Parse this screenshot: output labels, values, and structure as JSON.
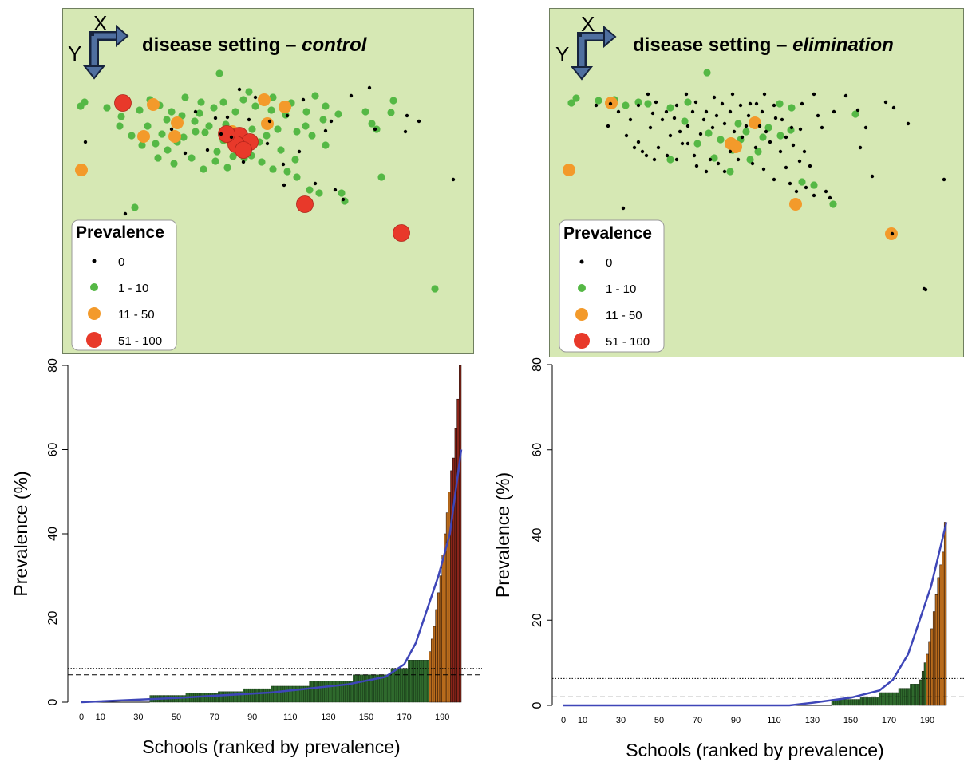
{
  "colors": {
    "map_bg": "#d6e8b4",
    "zero": "#000000",
    "low": "#55b845",
    "mid": "#f39a2b",
    "high": "#e8392a",
    "bar_low": "#2f6a2d",
    "bar_mid": "#b86b1c",
    "bar_high": "#8a241a",
    "curve": "#3e46b8",
    "arrow": "#4f6f9f"
  },
  "legend": {
    "title": "Prevalence",
    "entries": [
      {
        "label": "0",
        "category": "zero"
      },
      {
        "label": "1 - 10",
        "category": "low"
      },
      {
        "label": "11 - 50",
        "category": "mid"
      },
      {
        "label": "51 - 100",
        "category": "high"
      }
    ]
  },
  "compass": {
    "x": "X",
    "y": "Y"
  },
  "maps": [
    {
      "title_prefix": "disease setting – ",
      "title_em": "control"
    },
    {
      "title_prefix": "disease setting – ",
      "title_em": "elimination"
    }
  ],
  "chart_data": [
    {
      "type": "bar",
      "title": "",
      "xlabel": "Schools (ranked by prevalence)",
      "ylabel": "Prevalence (%)",
      "ylim": [
        0,
        80
      ],
      "xlim": [
        0,
        200
      ],
      "yticks": [
        0,
        20,
        40,
        60,
        80
      ],
      "xticks": [
        0,
        10,
        30,
        50,
        70,
        90,
        110,
        130,
        150,
        170,
        190
      ],
      "reference_lines": [
        {
          "style": "dotted",
          "y": 8
        },
        {
          "style": "dashed",
          "y": 6.5
        }
      ],
      "bands": [
        {
          "start": 0,
          "end": 36,
          "value": 0
        },
        {
          "start": 36,
          "end": 55,
          "value": 1.6
        },
        {
          "start": 55,
          "end": 72,
          "value": 2.2
        },
        {
          "start": 72,
          "end": 85,
          "value": 2.5
        },
        {
          "start": 85,
          "end": 100,
          "value": 3.2
        },
        {
          "start": 100,
          "end": 120,
          "value": 3.8
        },
        {
          "start": 120,
          "end": 143,
          "value": 5
        },
        {
          "start": 143,
          "end": 163,
          "value": 6.5
        },
        {
          "start": 163,
          "end": 172,
          "value": 8
        },
        {
          "start": 172,
          "end": 183,
          "value": 10
        }
      ],
      "top_bars": [
        12,
        15,
        18,
        22,
        26,
        30,
        35,
        40,
        45,
        50,
        55,
        58,
        65,
        72,
        80
      ],
      "category_cutoffs": {
        "mid_min": 11,
        "high_min": 51
      },
      "curve": [
        [
          0,
          0
        ],
        [
          50,
          1
        ],
        [
          100,
          2.3
        ],
        [
          140,
          4.2
        ],
        [
          160,
          6
        ],
        [
          170,
          9
        ],
        [
          176,
          14
        ],
        [
          182,
          22
        ],
        [
          188,
          30
        ],
        [
          194,
          40
        ],
        [
          200,
          60
        ]
      ]
    },
    {
      "type": "bar",
      "title": "",
      "xlabel": "Schools (ranked by prevalence)",
      "ylabel": "Prevalence (%)",
      "ylim": [
        0,
        80
      ],
      "xlim": [
        0,
        200
      ],
      "yticks": [
        0,
        20,
        40,
        60,
        80
      ],
      "xticks": [
        0,
        10,
        30,
        50,
        70,
        90,
        110,
        130,
        150,
        170,
        190
      ],
      "reference_lines": [
        {
          "style": "dotted",
          "y": 6.3
        },
        {
          "style": "dashed",
          "y": 2
        }
      ],
      "bands": [
        {
          "start": 0,
          "end": 140,
          "value": 0
        },
        {
          "start": 140,
          "end": 155,
          "value": 1.4
        },
        {
          "start": 155,
          "end": 165,
          "value": 1.8
        },
        {
          "start": 165,
          "end": 175,
          "value": 3
        },
        {
          "start": 175,
          "end": 181,
          "value": 4
        },
        {
          "start": 181,
          "end": 186,
          "value": 5
        }
      ],
      "top_bars": [
        6,
        8,
        10,
        12,
        15,
        18,
        22,
        26,
        30,
        33,
        36,
        43
      ],
      "category_cutoffs": {
        "mid_min": 11,
        "high_min": 51
      },
      "curve": [
        [
          0,
          0
        ],
        [
          118,
          0
        ],
        [
          130,
          0.6
        ],
        [
          150,
          1.8
        ],
        [
          165,
          3.5
        ],
        [
          172,
          6
        ],
        [
          180,
          12
        ],
        [
          186,
          20
        ],
        [
          192,
          28
        ],
        [
          200,
          43
        ]
      ]
    }
  ],
  "map_points": [
    {
      "zero": [
        [
          157,
          268
        ],
        [
          107,
          178
        ],
        [
          270,
          148
        ],
        [
          320,
          122
        ],
        [
          360,
          145
        ],
        [
          290,
          172
        ],
        [
          335,
          180
        ],
        [
          375,
          190
        ],
        [
          395,
          230
        ],
        [
          415,
          152
        ],
        [
          420,
          238
        ],
        [
          430,
          250
        ],
        [
          355,
          206
        ],
        [
          305,
          203
        ],
        [
          260,
          188
        ],
        [
          215,
          162
        ],
        [
          245,
          140
        ],
        [
          300,
          112
        ],
        [
          380,
          125
        ],
        [
          470,
          162
        ],
        [
          510,
          145
        ],
        [
          525,
          152
        ],
        [
          568,
          225
        ],
        [
          508,
          165
        ],
        [
          463,
          110
        ],
        [
          440,
          120
        ],
        [
          338,
          152
        ],
        [
          312,
          150
        ],
        [
          285,
          147
        ],
        [
          277,
          168
        ],
        [
          232,
          192
        ],
        [
          408,
          164
        ],
        [
          356,
          232
        ]
      ],
      "low": [
        [
          106,
          128
        ],
        [
          101,
          133
        ],
        [
          134,
          135
        ],
        [
          160,
          128
        ],
        [
          175,
          138
        ],
        [
          188,
          125
        ],
        [
          200,
          132
        ],
        [
          215,
          140
        ],
        [
          232,
          122
        ],
        [
          250,
          142
        ],
        [
          275,
          92
        ],
        [
          280,
          128
        ],
        [
          295,
          140
        ],
        [
          305,
          125
        ],
        [
          320,
          133
        ],
        [
          340,
          138
        ],
        [
          358,
          144
        ],
        [
          372,
          165
        ],
        [
          383,
          158
        ],
        [
          395,
          120
        ],
        [
          408,
          133
        ],
        [
          424,
          143
        ],
        [
          458,
          140
        ],
        [
          466,
          155
        ],
        [
          472,
          162
        ],
        [
          490,
          141
        ],
        [
          493,
          126
        ],
        [
          478,
          222
        ],
        [
          169,
          260
        ],
        [
          195,
          180
        ],
        [
          210,
          188
        ],
        [
          230,
          172
        ],
        [
          245,
          165
        ],
        [
          262,
          158
        ],
        [
          280,
          176
        ],
        [
          298,
          188
        ],
        [
          315,
          195
        ],
        [
          328,
          203
        ],
        [
          342,
          212
        ],
        [
          360,
          215
        ],
        [
          372,
          222
        ],
        [
          388,
          238
        ],
        [
          400,
          242
        ],
        [
          428,
          242
        ],
        [
          432,
          252
        ],
        [
          150,
          158
        ],
        [
          165,
          170
        ],
        [
          178,
          182
        ],
        [
          198,
          198
        ],
        [
          218,
          205
        ],
        [
          240,
          198
        ],
        [
          255,
          212
        ],
        [
          270,
          202
        ],
        [
          285,
          210
        ],
        [
          306,
          198
        ],
        [
          325,
          178
        ],
        [
          348,
          162
        ],
        [
          352,
          188
        ],
        [
          370,
          200
        ],
        [
          391,
          170
        ],
        [
          408,
          182
        ],
        [
          228,
          145
        ],
        [
          252,
          128
        ],
        [
          268,
          135
        ],
        [
          312,
          115
        ],
        [
          342,
          122
        ],
        [
          365,
          129
        ],
        [
          152,
          146
        ],
        [
          185,
          158
        ],
        [
          203,
          168
        ],
        [
          222,
          178
        ],
        [
          244,
          152
        ],
        [
          300,
          165
        ],
        [
          316,
          162
        ],
        [
          283,
          156
        ],
        [
          272,
          190
        ],
        [
          257,
          166
        ],
        [
          209,
          150
        ],
        [
          292,
          196
        ],
        [
          334,
          170
        ],
        [
          384,
          140
        ],
        [
          405,
          150
        ],
        [
          545,
          362
        ]
      ],
      "mid": [
        [
          102,
          213
        ],
        [
          192,
          131
        ],
        [
          180,
          171
        ],
        [
          219,
          171
        ],
        [
          222,
          154
        ],
        [
          331,
          125
        ],
        [
          357,
          134
        ],
        [
          335,
          155
        ],
        [
          308,
          182
        ],
        [
          316,
          177
        ],
        [
          291,
          165
        ],
        [
          286,
          172
        ]
      ],
      "high": [
        [
          154,
          129
        ],
        [
          382,
          256
        ],
        [
          503,
          292
        ],
        [
          300,
          170
        ],
        [
          313,
          178
        ],
        [
          296,
          181
        ],
        [
          284,
          168
        ],
        [
          305,
          188
        ]
      ]
    },
    {
      "zero": [
        [
          781,
          261
        ],
        [
          747,
          132
        ],
        [
          762,
          158
        ],
        [
          775,
          140
        ],
        [
          790,
          150
        ],
        [
          800,
          132
        ],
        [
          812,
          118
        ],
        [
          822,
          128
        ],
        [
          835,
          140
        ],
        [
          848,
          132
        ],
        [
          860,
          118
        ],
        [
          872,
          128
        ],
        [
          885,
          140
        ],
        [
          895,
          122
        ],
        [
          905,
          130
        ],
        [
          918,
          118
        ],
        [
          928,
          132
        ],
        [
          938,
          145
        ],
        [
          948,
          130
        ],
        [
          958,
          118
        ],
        [
          970,
          132
        ],
        [
          980,
          150
        ],
        [
          992,
          160
        ],
        [
          1005,
          130
        ],
        [
          1020,
          118
        ],
        [
          1030,
          160
        ],
        [
          1045,
          140
        ],
        [
          1060,
          120
        ],
        [
          1075,
          138
        ],
        [
          1085,
          160
        ],
        [
          1110,
          128
        ],
        [
          1138,
          155
        ],
        [
          1093,
          221
        ],
        [
          1183,
          225
        ],
        [
          1120,
          135
        ],
        [
          1078,
          185
        ],
        [
          960,
          165
        ],
        [
          947,
          185
        ],
        [
          930,
          172
        ],
        [
          915,
          190
        ],
        [
          900,
          205
        ],
        [
          885,
          215
        ],
        [
          870,
          195
        ],
        [
          855,
          180
        ],
        [
          840,
          170
        ],
        [
          825,
          185
        ],
        [
          810,
          195
        ],
        [
          800,
          178
        ],
        [
          815,
          160
        ],
        [
          830,
          150
        ],
        [
          845,
          148
        ],
        [
          862,
          158
        ],
        [
          878,
          168
        ],
        [
          893,
          160
        ],
        [
          908,
          155
        ],
        [
          920,
          165
        ],
        [
          935,
          158
        ],
        [
          952,
          158
        ],
        [
          965,
          178
        ],
        [
          978,
          190
        ],
        [
          985,
          210
        ],
        [
          990,
          230
        ],
        [
          998,
          240
        ],
        [
          1010,
          235
        ],
        [
          1020,
          245
        ],
        [
          1035,
          240
        ],
        [
          1040,
          248
        ],
        [
          1002,
          202
        ],
        [
          970,
          225
        ],
        [
          957,
          212
        ],
        [
          943,
          205
        ],
        [
          925,
          200
        ],
        [
          908,
          215
        ],
        [
          890,
          200
        ],
        [
          873,
          208
        ],
        [
          862,
          180
        ],
        [
          848,
          200
        ],
        [
          836,
          195
        ],
        [
          820,
          200
        ],
        [
          805,
          190
        ],
        [
          765,
          130
        ],
        [
          785,
          170
        ],
        [
          795,
          185
        ],
        [
          818,
          142
        ],
        [
          852,
          165
        ],
        [
          868,
          140
        ],
        [
          882,
          150
        ],
        [
          898,
          145
        ],
        [
          915,
          140
        ],
        [
          940,
          130
        ],
        [
          955,
          140
        ],
        [
          972,
          148
        ],
        [
          985,
          172
        ],
        [
          994,
          182
        ],
        [
          1008,
          190
        ],
        [
          1015,
          208
        ],
        [
          1025,
          145
        ],
        [
          1003,
          162
        ],
        [
          1118,
          293
        ],
        [
          1160,
          363
        ],
        [
          1158,
          362
        ]
      ],
      "low": [
        [
          716,
          129
        ],
        [
          722,
          123
        ],
        [
          750,
          126
        ],
        [
          770,
          125
        ],
        [
          784,
          132
        ],
        [
          800,
          128
        ],
        [
          840,
          135
        ],
        [
          862,
          128
        ],
        [
          886,
          91
        ],
        [
          925,
          155
        ],
        [
          935,
          165
        ],
        [
          918,
          188
        ],
        [
          903,
          175
        ],
        [
          888,
          167
        ],
        [
          874,
          180
        ],
        [
          895,
          198
        ],
        [
          915,
          215
        ],
        [
          928,
          175
        ],
        [
          940,
          200
        ],
        [
          950,
          190
        ],
        [
          963,
          160
        ],
        [
          977,
          130
        ],
        [
          992,
          135
        ],
        [
          1005,
          228
        ],
        [
          1044,
          256
        ],
        [
          1072,
          143
        ],
        [
          1020,
          232
        ],
        [
          991,
          163
        ],
        [
          840,
          200
        ],
        [
          812,
          130
        ],
        [
          858,
          152
        ],
        [
          978,
          170
        ],
        [
          956,
          172
        ]
      ],
      "mid": [
        [
          713,
          213
        ],
        [
          766,
          129
        ],
        [
          916,
          180
        ],
        [
          922,
          184
        ],
        [
          946,
          154
        ],
        [
          997,
          256
        ],
        [
          1117,
          293
        ]
      ],
      "high": []
    }
  ]
}
